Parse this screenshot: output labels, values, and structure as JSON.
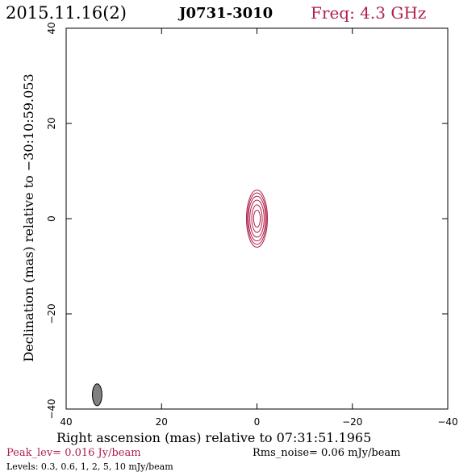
{
  "header": {
    "date": "2015.11.16(2)",
    "source": "J0731-3010",
    "freq": "Freq: 4.3 GHz"
  },
  "colors": {
    "accent": "#b0204a",
    "contour": "#b0204a",
    "beam_fill": "#808080",
    "axis": "#000000"
  },
  "footer": {
    "peak": "Peak_lev=  0.016 Jy/beam",
    "rms": "Rms_noise= 0.06 mJy/beam",
    "levels": "Levels: 0.3, 0.6,    1,    2,    5,   10 mJy/beam"
  },
  "chart_data": {
    "type": "contour",
    "xlabel": "Right ascension (mas) relative to 07:31:51.1965",
    "ylabel": "Declination (mas) relative to −30:10:59.053",
    "xlim": [
      40,
      -40
    ],
    "ylim": [
      -40,
      40
    ],
    "xticks": [
      40,
      20,
      0,
      -20,
      -40
    ],
    "yticks": [
      -40,
      -20,
      0,
      20,
      40
    ],
    "xtick_labels": [
      "40",
      "20",
      "0",
      "−20",
      "−40"
    ],
    "ytick_labels": [
      "−40",
      "−20",
      "0",
      "20",
      "40"
    ],
    "contour_levels_mJy": [
      0.3,
      0.6,
      1,
      2,
      5,
      10
    ],
    "contour_center_mas": [
      0,
      0
    ],
    "contour_half_widths_mas": [
      {
        "rx": 2.2,
        "ry": 6.0
      },
      {
        "rx": 2.0,
        "ry": 5.4
      },
      {
        "rx": 1.8,
        "ry": 4.7
      },
      {
        "rx": 1.5,
        "ry": 3.9
      },
      {
        "rx": 1.1,
        "ry": 2.9
      },
      {
        "rx": 0.7,
        "ry": 1.8
      }
    ],
    "beam": {
      "x": 33.5,
      "y": -37,
      "rx": 1.0,
      "ry": 2.3
    },
    "grid": false
  }
}
